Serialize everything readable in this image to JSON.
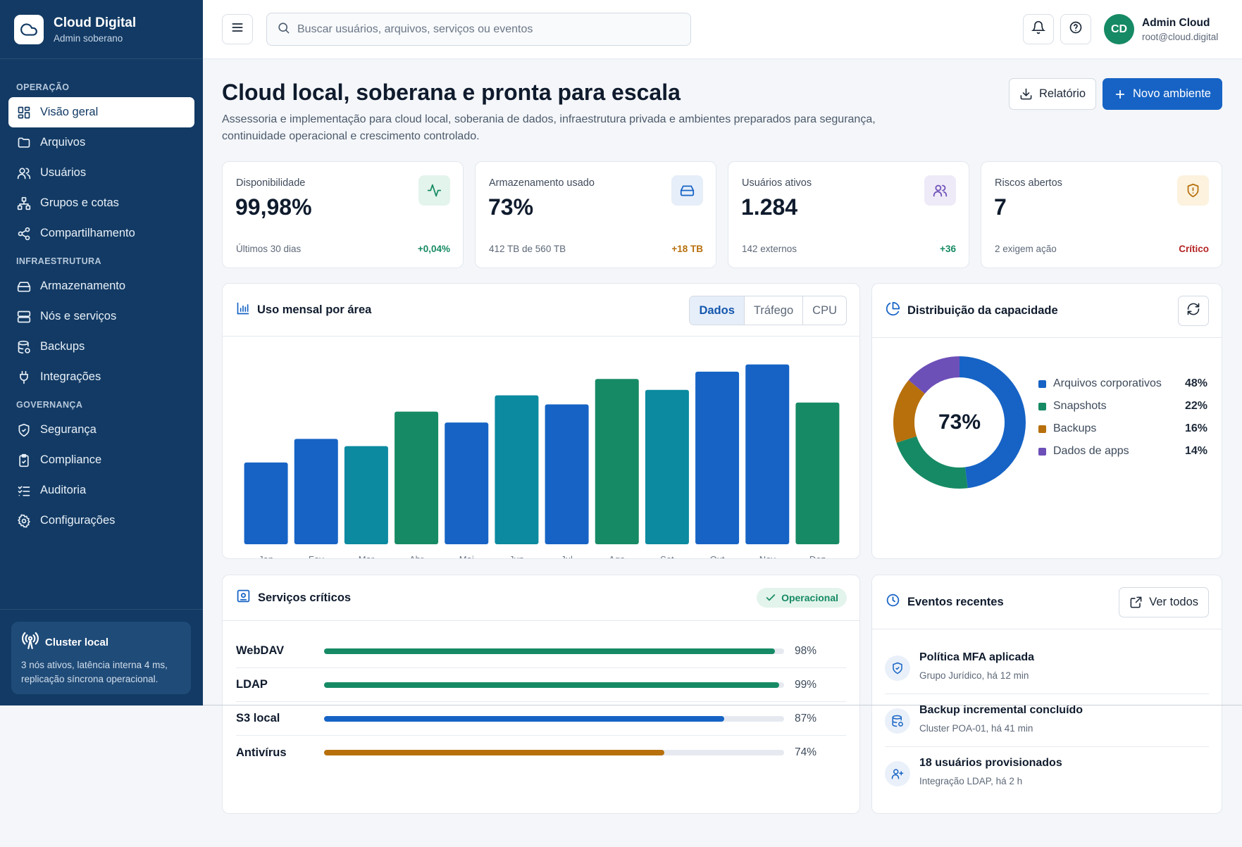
{
  "brand": {
    "title": "Cloud Digital",
    "subtitle": "Admin soberano"
  },
  "sidebar": {
    "sections": [
      {
        "label": "OPERAÇÃO",
        "items": [
          {
            "label": "Visão geral",
            "icon": "grid-icon",
            "active": true
          },
          {
            "label": "Arquivos",
            "icon": "folder-icon"
          },
          {
            "label": "Usuários",
            "icon": "users-icon"
          },
          {
            "label": "Grupos e cotas",
            "icon": "network-icon"
          },
          {
            "label": "Compartilhamento",
            "icon": "share-icon"
          }
        ]
      },
      {
        "label": "INFRAESTRUTURA",
        "items": [
          {
            "label": "Armazenamento",
            "icon": "hard-drive-icon"
          },
          {
            "label": "Nós e serviços",
            "icon": "server-icon"
          },
          {
            "label": "Backups",
            "icon": "database-backup-icon"
          },
          {
            "label": "Integrações",
            "icon": "plug-icon"
          }
        ]
      },
      {
        "label": "GOVERNANÇA",
        "items": [
          {
            "label": "Segurança",
            "icon": "shield-check-icon"
          },
          {
            "label": "Compliance",
            "icon": "clipboard-check-icon"
          },
          {
            "label": "Auditoria",
            "icon": "list-checks-icon"
          },
          {
            "label": "Configurações",
            "icon": "gear-icon"
          }
        ]
      }
    ],
    "cluster": {
      "title": "Cluster local",
      "text": "3 nós ativos, latência interna 4 ms, replicação síncrona operacional."
    }
  },
  "header": {
    "search_placeholder": "Buscar usuários, arquivos, serviços ou eventos",
    "user": {
      "initials": "CD",
      "name": "Admin Cloud",
      "email": "root@cloud.digital"
    }
  },
  "page": {
    "title": "Cloud local, soberana e pronta para escala",
    "subtitle": "Assessoria e implementação para cloud local, soberania de dados, infraestrutura privada e ambientes preparados para segurança, continuidade operacional e crescimento controlado.",
    "report_label": "Relatório",
    "new_env_label": "Novo ambiente"
  },
  "kpis": [
    {
      "label": "Disponibilidade",
      "value": "99,98%",
      "foot": "Últimos 30 dias",
      "delta": "+0,04%",
      "delta_color": "#168a64",
      "icon": "activity-icon",
      "icon_bg": "#e3f4ec",
      "icon_color": "#168a64"
    },
    {
      "label": "Armazenamento usado",
      "value": "73%",
      "foot": "412 TB de 560 TB",
      "delta": "+18 TB",
      "delta_color": "#b7700c",
      "icon": "hard-drive-icon",
      "icon_bg": "#e6eef9",
      "icon_color": "#1663c5"
    },
    {
      "label": "Usuários ativos",
      "value": "1.284",
      "foot": "142 externos",
      "delta": "+36",
      "delta_color": "#168a64",
      "icon": "users-icon",
      "icon_bg": "#efeaf8",
      "icon_color": "#6d4fb8"
    },
    {
      "label": "Riscos abertos",
      "value": "7",
      "foot": "2 exigem ação",
      "delta": "Crítico",
      "delta_color": "#b42323",
      "icon": "shield-alert-icon",
      "icon_bg": "#fcf2de",
      "icon_color": "#b7700c"
    }
  ],
  "usage": {
    "title": "Uso mensal por área",
    "tabs": [
      "Dados",
      "Tráfego",
      "CPU"
    ],
    "active_tab": "Dados"
  },
  "chart_data": {
    "type": "bar",
    "categories": [
      "Jan",
      "Fev",
      "Mar",
      "Abr",
      "Mai",
      "Jun",
      "Jul",
      "Ago",
      "Set",
      "Out",
      "Nov",
      "Dez"
    ],
    "values": [
      45,
      58,
      54,
      73,
      67,
      82,
      77,
      91,
      85,
      95,
      99,
      78
    ],
    "colors": [
      "#1663c5",
      "#1663c5",
      "#0b8aa0",
      "#168a64",
      "#1663c5",
      "#0b8aa0",
      "#1663c5",
      "#168a64",
      "#0b8aa0",
      "#1663c5",
      "#1663c5",
      "#168a64"
    ],
    "ylim": [
      0,
      100
    ],
    "grid": false
  },
  "capacity": {
    "title": "Distribuição da capacidade",
    "center_label": "73%",
    "slices": [
      {
        "name": "Arquivos corporativos",
        "pct": "48%",
        "value": 48,
        "color": "#1663c5"
      },
      {
        "name": "Snapshots",
        "pct": "22%",
        "value": 22,
        "color": "#168a64"
      },
      {
        "name": "Backups",
        "pct": "16%",
        "value": 16,
        "color": "#b7700c"
      },
      {
        "name": "Dados de apps",
        "pct": "14%",
        "value": 14,
        "color": "#6d4fb8"
      }
    ]
  },
  "services": {
    "title": "Serviços críticos",
    "badge": "Operacional",
    "items": [
      {
        "name": "WebDAV",
        "pct": "98%",
        "value": 98,
        "color": "#168a64"
      },
      {
        "name": "LDAP",
        "pct": "99%",
        "value": 99,
        "color": "#168a64"
      },
      {
        "name": "S3 local",
        "pct": "87%",
        "value": 87,
        "color": "#1663c5"
      },
      {
        "name": "Antivírus",
        "pct": "74%",
        "value": 74,
        "color": "#b7700c"
      }
    ]
  },
  "events": {
    "title": "Eventos recentes",
    "see_all": "Ver todos",
    "items": [
      {
        "title": "Política MFA aplicada",
        "sub": "Grupo Jurídico, há 12 min",
        "icon": "shield-check-icon"
      },
      {
        "title": "Backup incremental concluído",
        "sub": "Cluster POA-01, há 41 min",
        "icon": "database-backup-icon"
      },
      {
        "title": "18 usuários provisionados",
        "sub": "Integração LDAP, há 2 h",
        "icon": "user-plus-icon"
      }
    ]
  }
}
